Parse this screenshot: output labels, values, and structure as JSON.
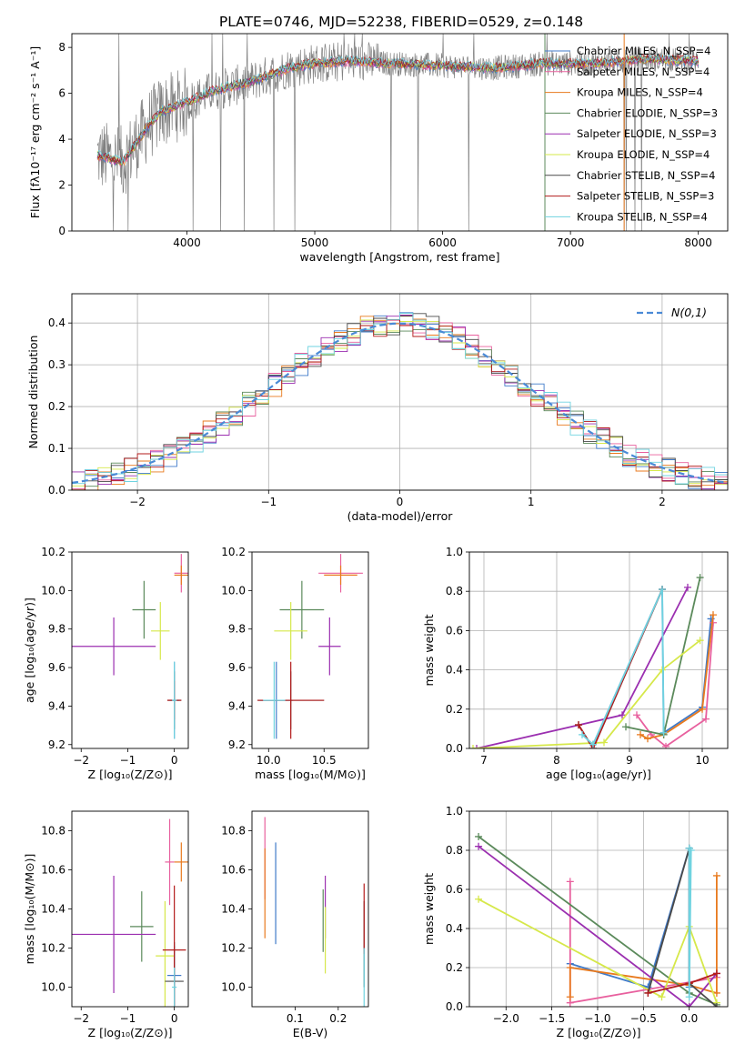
{
  "figure": {
    "title": "PLATE=0746, MJD=52238, FIBERID=0529, z=0.148"
  },
  "colors": {
    "Chabrier MILES": "#3f7ac9",
    "Salpeter MILES": "#e8609e",
    "Kroupa MILES": "#e87a1e",
    "Chabrier ELODIE": "#5b8a5b",
    "Salpeter ELODIE": "#9b2fb0",
    "Kroupa ELODIE": "#d6e84a",
    "Chabrier STELIB": "#4a4a4a",
    "Salpeter STELIB": "#b31b1b",
    "Kroupa STELIB": "#6fd3e0",
    "data": "#808080",
    "normal": "#4a8ad6"
  },
  "chart_data": [
    {
      "type": "line",
      "panel": "spectrum",
      "title": "PLATE=0746, MJD=52238, FIBERID=0529, z=0.148",
      "xlabel": "wavelength [Angstrom, rest frame]",
      "ylabel": "Flux [fλ10⁻¹⁷ erg cm⁻² s⁻¹ A⁻¹]",
      "xlim": [
        3100,
        8230
      ],
      "ylim": [
        0,
        8.6
      ],
      "xticks": [
        "4000",
        "5000",
        "6000",
        "7000",
        "8000"
      ],
      "yticks": [
        "0",
        "2",
        "4",
        "6",
        "8"
      ],
      "legend_position": "upper-right",
      "series": [
        {
          "name": "Chabrier MILES, N_SSP=4"
        },
        {
          "name": "Salpeter MILES, N_SSP=4"
        },
        {
          "name": "Kroupa MILES, N_SSP=4"
        },
        {
          "name": "Chabrier ELODIE, N_SSP=3"
        },
        {
          "name": "Salpeter ELODIE, N_SSP=3"
        },
        {
          "name": "Kroupa ELODIE, N_SSP=4"
        },
        {
          "name": "Chabrier STELIB, N_SSP=4"
        },
        {
          "name": "Salpeter STELIB, N_SSP=3"
        },
        {
          "name": "Kroupa STELIB, N_SSP=4"
        }
      ],
      "continuum": {
        "x": [
          3300,
          3500,
          3700,
          3800,
          4000,
          4200,
          4500,
          4800,
          5000,
          5300,
          5600,
          6000,
          6400,
          6800,
          7200,
          7600,
          8000
        ],
        "y": [
          3.3,
          3.0,
          4.6,
          5.2,
          5.6,
          6.1,
          6.5,
          7.1,
          7.3,
          7.4,
          7.3,
          7.2,
          7.1,
          7.3,
          7.3,
          7.5,
          7.4
        ]
      }
    },
    {
      "type": "line",
      "panel": "residual histogram",
      "xlabel": "(data-model)/error",
      "ylabel": "Normed distribution",
      "xlim": [
        -2.5,
        2.5
      ],
      "ylim": [
        0,
        0.47
      ],
      "xticks": [
        "−2",
        "−1",
        "0",
        "1",
        "2"
      ],
      "yticks": [
        "0.0",
        "0.1",
        "0.2",
        "0.3",
        "0.4"
      ],
      "grid": true,
      "legend_position": "upper-right",
      "normal_label": "N(0,1)",
      "normal_mean": 0,
      "normal_sigma": 1
    },
    {
      "type": "scatter",
      "panel": "age vs Z",
      "xlabel": "Z [log₁₀(Z/Z⊙)]",
      "ylabel": "age [log₁₀(age/yr)]",
      "xlim": [
        -2.2,
        0.3
      ],
      "ylim": [
        9.18,
        10.2
      ],
      "xticks": [
        "−2",
        "−1",
        "0"
      ],
      "yticks": [
        "9.2",
        "9.4",
        "9.6",
        "9.8",
        "10.0",
        "10.2"
      ],
      "points": [
        {
          "series": "Chabrier MILES",
          "x": 0.0,
          "y": 9.43,
          "xerr": 0.1,
          "yerr": 0.2
        },
        {
          "series": "Salpeter MILES",
          "x": 0.15,
          "y": 10.09,
          "xerr": 0.15,
          "yerr": 0.1
        },
        {
          "series": "Kroupa MILES",
          "x": 0.15,
          "y": 10.08,
          "xerr": 0.15,
          "yerr": 0.05
        },
        {
          "series": "Chabrier ELODIE",
          "x": -0.65,
          "y": 9.9,
          "xerr": 0.25,
          "yerr": 0.15
        },
        {
          "series": "Salpeter ELODIE",
          "x": -1.3,
          "y": 9.71,
          "xerr": 0.9,
          "yerr": 0.15
        },
        {
          "series": "Kroupa ELODIE",
          "x": -0.3,
          "y": 9.79,
          "xerr": 0.2,
          "yerr": 0.15
        },
        {
          "series": "Chabrier STELIB",
          "x": 0.0,
          "y": 9.43,
          "xerr": 0.15,
          "yerr": 0.15
        },
        {
          "series": "Salpeter STELIB",
          "x": 0.0,
          "y": 9.43,
          "xerr": 0.15,
          "yerr": 0.1
        },
        {
          "series": "Kroupa STELIB",
          "x": 0.0,
          "y": 9.43,
          "xerr": 0.05,
          "yerr": 0.2
        }
      ]
    },
    {
      "type": "scatter",
      "panel": "age vs mass",
      "xlabel": "mass [log₁₀(M/M⊙)]",
      "ylabel": "",
      "xlim": [
        9.85,
        10.9
      ],
      "ylim": [
        9.18,
        10.2
      ],
      "xticks": [
        "10.0",
        "10.5"
      ],
      "yticks": [
        "9.2",
        "9.4",
        "9.6",
        "9.8",
        "10.0",
        "10.2"
      ],
      "points": [
        {
          "series": "Chabrier MILES",
          "x": 10.07,
          "y": 9.43,
          "xerr": 0.15,
          "yerr": 0.2
        },
        {
          "series": "Salpeter MILES",
          "x": 10.65,
          "y": 10.09,
          "xerr": 0.2,
          "yerr": 0.1
        },
        {
          "series": "Kroupa MILES",
          "x": 10.65,
          "y": 10.08,
          "xerr": 0.15,
          "yerr": 0.05
        },
        {
          "series": "Chabrier ELODIE",
          "x": 10.3,
          "y": 9.9,
          "xerr": 0.2,
          "yerr": 0.15
        },
        {
          "series": "Salpeter ELODIE",
          "x": 10.55,
          "y": 9.71,
          "xerr": 0.1,
          "yerr": 0.15
        },
        {
          "series": "Kroupa ELODIE",
          "x": 10.2,
          "y": 9.79,
          "xerr": 0.15,
          "yerr": 0.15
        },
        {
          "series": "Chabrier STELIB",
          "x": 10.2,
          "y": 9.43,
          "xerr": 0.3,
          "yerr": 0.15
        },
        {
          "series": "Salpeter STELIB",
          "x": 10.2,
          "y": 9.43,
          "xerr": 0.3,
          "yerr": 0.2
        },
        {
          "series": "Kroupa STELIB",
          "x": 10.05,
          "y": 9.43,
          "xerr": 0.1,
          "yerr": 0.2
        }
      ]
    },
    {
      "type": "line",
      "panel": "mass weight vs age",
      "xlabel": "age [log₁₀(age/yr)]",
      "ylabel": "mass weight",
      "xlim": [
        6.8,
        10.35
      ],
      "ylim": [
        0,
        1.0
      ],
      "xticks": [
        "7",
        "8",
        "9",
        "10"
      ],
      "yticks": [
        "0.0",
        "0.2",
        "0.4",
        "0.6",
        "0.8",
        "1.0"
      ],
      "grid": true,
      "series": [
        {
          "series": "Chabrier MILES",
          "x": [
            8.5,
            9.45,
            9.47,
            10.0,
            10.12
          ],
          "y": [
            0.02,
            0.81,
            0.08,
            0.21,
            0.66
          ]
        },
        {
          "series": "Salpeter MILES",
          "x": [
            9.1,
            9.3,
            9.5,
            10.05,
            10.15
          ],
          "y": [
            0.17,
            0.07,
            0.01,
            0.15,
            0.64
          ]
        },
        {
          "series": "Kroupa MILES",
          "x": [
            9.15,
            9.25,
            9.47,
            10.0,
            10.15
          ],
          "y": [
            0.07,
            0.05,
            0.07,
            0.2,
            0.68
          ]
        },
        {
          "series": "Chabrier ELODIE",
          "x": [
            8.95,
            9.47,
            9.97
          ],
          "y": [
            0.11,
            0.07,
            0.87
          ]
        },
        {
          "series": "Salpeter ELODIE",
          "x": [
            6.9,
            8.9,
            9.8
          ],
          "y": [
            0.0,
            0.17,
            0.82
          ]
        },
        {
          "series": "Kroupa ELODIE",
          "x": [
            6.85,
            8.65,
            9.45,
            9.97
          ],
          "y": [
            0.0,
            0.03,
            0.4,
            0.55
          ]
        },
        {
          "series": "Chabrier STELIB",
          "x": [
            8.3,
            8.5,
            9.45
          ],
          "y": [
            0.12,
            0.0,
            0.81
          ]
        },
        {
          "series": "Salpeter STELIB",
          "x": [
            8.3,
            8.5,
            9.45
          ],
          "y": [
            0.12,
            0.0,
            0.81
          ]
        },
        {
          "series": "Kroupa STELIB",
          "x": [
            8.35,
            8.5,
            9.45,
            9.47
          ],
          "y": [
            0.07,
            0.02,
            0.81,
            0.08
          ]
        }
      ]
    },
    {
      "type": "scatter",
      "panel": "mass vs Z",
      "xlabel": "Z [log₁₀(Z/Z⊙)]",
      "ylabel": "mass [log₁₀(M/M⊙)]",
      "xlim": [
        -2.2,
        0.3
      ],
      "ylim": [
        9.9,
        10.9
      ],
      "xticks": [
        "−2",
        "−1",
        "0"
      ],
      "yticks": [
        "10.0",
        "10.2",
        "10.4",
        "10.6",
        "10.8"
      ],
      "points": [
        {
          "series": "Chabrier MILES",
          "x": 0.0,
          "y": 10.06,
          "xerr": 0.15,
          "yerr": 0.15
        },
        {
          "series": "Salpeter MILES",
          "x": -0.1,
          "y": 10.64,
          "xerr": 0.1,
          "yerr": 0.22
        },
        {
          "series": "Kroupa MILES",
          "x": 0.15,
          "y": 10.64,
          "xerr": 0.15,
          "yerr": 0.1
        },
        {
          "series": "Chabrier ELODIE",
          "x": -0.7,
          "y": 10.31,
          "xerr": 0.25,
          "yerr": 0.18
        },
        {
          "series": "Salpeter ELODIE",
          "x": -1.3,
          "y": 10.27,
          "xerr": 0.9,
          "yerr": 0.3
        },
        {
          "series": "Kroupa ELODIE",
          "x": -0.2,
          "y": 10.16,
          "xerr": 0.2,
          "yerr": 0.28
        },
        {
          "series": "Chabrier STELIB",
          "x": 0.0,
          "y": 10.03,
          "xerr": 0.2,
          "yerr": 0.2
        },
        {
          "series": "Salpeter STELIB",
          "x": 0.0,
          "y": 10.19,
          "xerr": 0.25,
          "yerr": 0.33
        },
        {
          "series": "Kroupa STELIB",
          "x": 0.0,
          "y": 10.0,
          "xerr": 0.05,
          "yerr": 0.1
        }
      ]
    },
    {
      "type": "scatter",
      "panel": "mass vs E(B-V)",
      "xlabel": "E(B-V)",
      "ylabel": "",
      "xlim": [
        0.0,
        0.27
      ],
      "ylim": [
        9.9,
        10.9
      ],
      "xticks": [
        "0.1",
        "0.2"
      ],
      "yticks": [
        "10.0",
        "10.2",
        "10.4",
        "10.6",
        "10.8"
      ],
      "points": [
        {
          "series": "Chabrier MILES",
          "x": 0.055,
          "y": 10.48,
          "yerr": 0.26
        },
        {
          "series": "Salpeter MILES",
          "x": 0.03,
          "y": 10.66,
          "yerr": 0.21
        },
        {
          "series": "Kroupa MILES",
          "x": 0.03,
          "y": 10.48,
          "yerr": 0.23
        },
        {
          "series": "Chabrier ELODIE",
          "x": 0.165,
          "y": 10.34,
          "yerr": 0.16
        },
        {
          "series": "Salpeter ELODIE",
          "x": 0.17,
          "y": 10.41,
          "yerr": 0.16
        },
        {
          "series": "Kroupa ELODIE",
          "x": 0.17,
          "y": 10.24,
          "yerr": 0.17
        },
        {
          "series": "Chabrier STELIB",
          "x": 0.26,
          "y": 10.22,
          "yerr": 0.22
        },
        {
          "series": "Salpeter STELIB",
          "x": 0.26,
          "y": 10.35,
          "yerr": 0.18
        },
        {
          "series": "Kroupa STELIB",
          "x": 0.26,
          "y": 10.05,
          "yerr": 0.15
        }
      ]
    },
    {
      "type": "line",
      "panel": "mass weight vs Z",
      "xlabel": "Z [log₁₀(Z/Z⊙)]",
      "ylabel": "mass weight",
      "xlim": [
        -2.4,
        0.42
      ],
      "ylim": [
        0,
        1.0
      ],
      "xticks": [
        "−2.0",
        "−1.5",
        "−1.0",
        "−0.5",
        "0.0"
      ],
      "yticks": [
        "0.0",
        "0.2",
        "0.4",
        "0.6",
        "0.8",
        "1.0"
      ],
      "grid": true,
      "series": [
        {
          "series": "Chabrier MILES",
          "x": [
            -1.3,
            -0.45,
            0.0,
            0.0
          ],
          "y": [
            0.22,
            0.1,
            0.81,
            0.1
          ]
        },
        {
          "series": "Salpeter MILES",
          "x": [
            -1.3,
            -1.3,
            0.3
          ],
          "y": [
            0.64,
            0.02,
            0.15
          ]
        },
        {
          "series": "Kroupa MILES",
          "x": [
            -1.3,
            -1.3,
            0.0,
            0.3,
            0.3
          ],
          "y": [
            0.05,
            0.2,
            0.11,
            0.07,
            0.67
          ]
        },
        {
          "series": "Chabrier ELODIE",
          "x": [
            -2.3,
            0.0,
            0.3
          ],
          "y": [
            0.87,
            0.07,
            0.01
          ]
        },
        {
          "series": "Salpeter ELODIE",
          "x": [
            -2.3,
            0.0,
            0.3
          ],
          "y": [
            0.82,
            0.0,
            0.17
          ]
        },
        {
          "series": "Kroupa ELODIE",
          "x": [
            -2.3,
            -0.3,
            0.0,
            0.3
          ],
          "y": [
            0.55,
            0.05,
            0.41,
            0.02
          ]
        },
        {
          "series": "Chabrier STELIB",
          "x": [
            -0.45,
            0.0,
            0.0,
            0.3
          ],
          "y": [
            0.07,
            0.81,
            0.12,
            0.0
          ]
        },
        {
          "series": "Salpeter STELIB",
          "x": [
            -0.45,
            0.0,
            0.3
          ],
          "y": [
            0.07,
            0.12,
            0.17
          ]
        },
        {
          "series": "Kroupa STELIB",
          "x": [
            0.0,
            0.0,
            0.02
          ],
          "y": [
            0.81,
            0.05,
            0.8
          ]
        }
      ]
    }
  ]
}
